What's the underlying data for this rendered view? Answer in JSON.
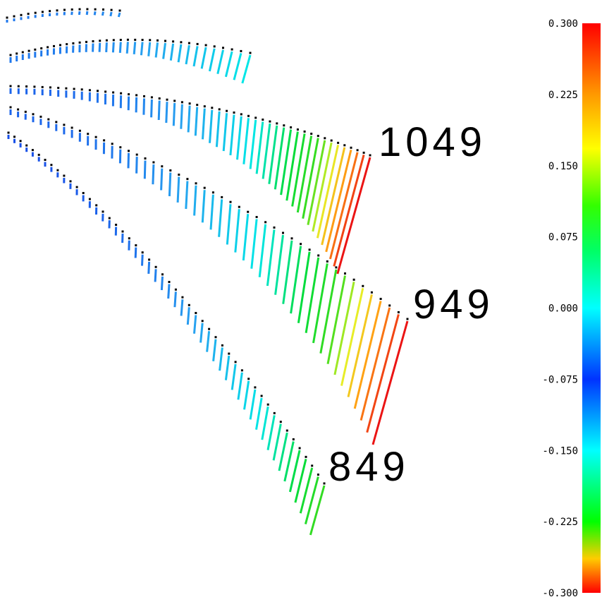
{
  "chart_data": {
    "type": "scatter",
    "description_kind": "track-colored sticks along curves",
    "curves": [
      {
        "label": "1049",
        "tip_value": 0.3
      },
      {
        "label": "949",
        "tip_value": 0.3
      },
      {
        "label": "849",
        "tip_value": -0.15
      }
    ],
    "colorbar": {
      "min": -0.3,
      "max": 0.3,
      "ticks": [
        "0.300",
        "0.225",
        "0.150",
        "0.075",
        "0.000",
        "-0.075",
        "-0.150",
        "-0.225",
        "-0.300"
      ],
      "colormap": "rainbow",
      "top_color": "#ff0000",
      "bottom_color": "#ff0000"
    },
    "grid": false,
    "legend": "none"
  }
}
